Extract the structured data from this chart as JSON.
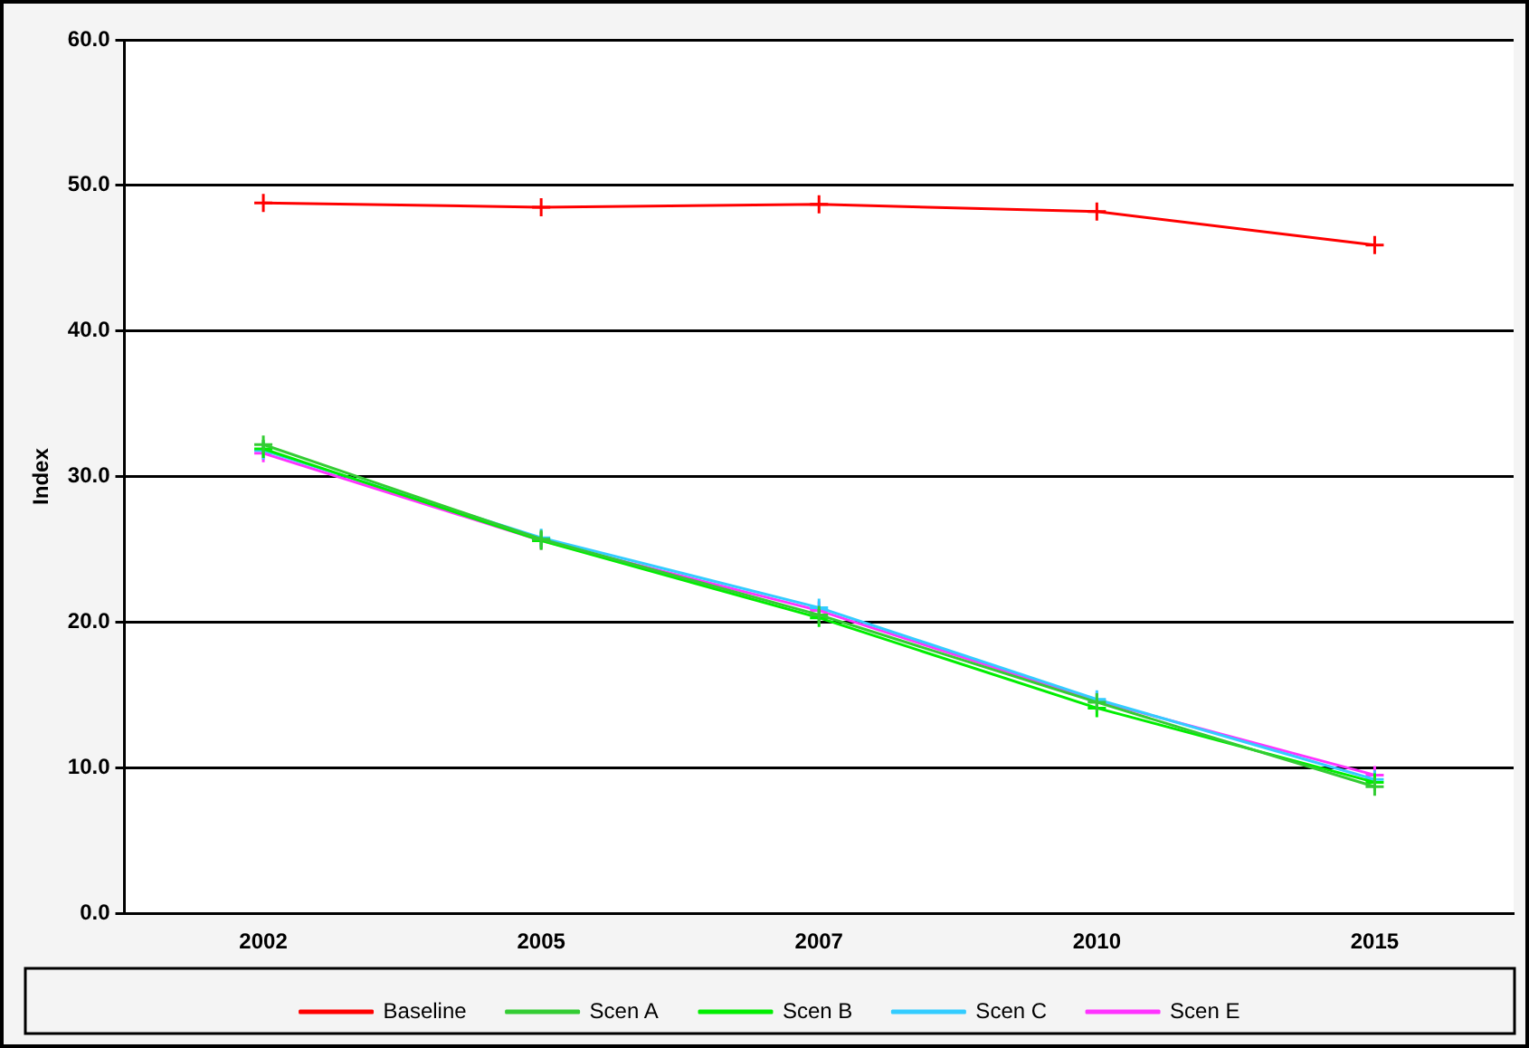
{
  "chart_data": {
    "type": "line",
    "ylabel": "Index",
    "categories": [
      "2002",
      "2005",
      "2007",
      "2010",
      "2015"
    ],
    "series": [
      {
        "name": "Baseline",
        "color": "#ff0000",
        "values": [
          48.8,
          48.5,
          48.7,
          48.2,
          45.9
        ]
      },
      {
        "name": "Scen A",
        "color": "#33cc33",
        "values": [
          32.2,
          25.7,
          20.5,
          14.5,
          8.7
        ]
      },
      {
        "name": "Scen B",
        "color": "#00ee00",
        "values": [
          31.9,
          25.6,
          20.3,
          14.1,
          9.0
        ]
      },
      {
        "name": "Scen C",
        "color": "#33ccff",
        "values": [
          31.8,
          25.8,
          21.0,
          14.7,
          9.2
        ]
      },
      {
        "name": "Scen E",
        "color": "#ff33ff",
        "values": [
          31.6,
          25.6,
          20.8,
          14.6,
          9.5
        ]
      }
    ],
    "ylim": [
      0,
      60
    ],
    "yticks": [
      {
        "value": 0,
        "label": "0.0"
      },
      {
        "value": 10,
        "label": "10.0"
      },
      {
        "value": 20,
        "label": "20.0"
      },
      {
        "value": 30,
        "label": "30.0"
      },
      {
        "value": 40,
        "label": "40.0"
      },
      {
        "value": 50,
        "label": "50.0"
      },
      {
        "value": 60,
        "label": "60.0"
      }
    ],
    "grid": "y",
    "legend": "bottom",
    "marker": "cross",
    "line_style": "solid"
  }
}
